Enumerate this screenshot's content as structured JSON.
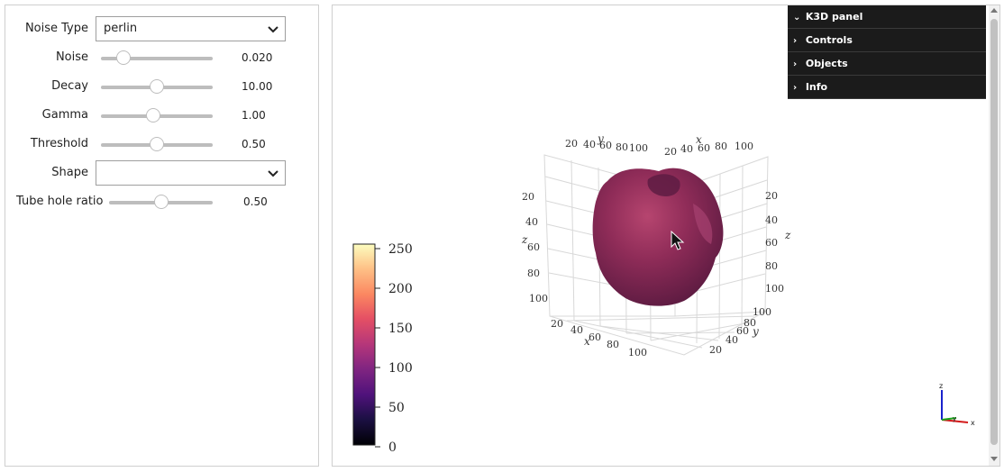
{
  "controls": {
    "noise_type": {
      "label": "Noise Type",
      "value": "perlin"
    },
    "noise": {
      "label": "Noise",
      "value": "0.020",
      "fraction": 0.2
    },
    "decay": {
      "label": "Decay",
      "value": "10.00",
      "fraction": 0.5
    },
    "gamma": {
      "label": "Gamma",
      "value": "1.00",
      "fraction": 0.47
    },
    "threshold": {
      "label": "Threshold",
      "value": "0.50",
      "fraction": 0.5
    },
    "shape": {
      "label": "Shape",
      "value": ""
    },
    "tube_hole_ratio": {
      "label": "Tube hole ratio",
      "value": "0.50",
      "fraction": 0.5
    }
  },
  "k3d_panel": {
    "title": "K3D panel",
    "items": [
      "Controls",
      "Objects",
      "Info"
    ]
  },
  "colorbar": {
    "ticks": [
      "250",
      "200",
      "150",
      "100",
      "50",
      "0"
    ],
    "colormap": "magma"
  },
  "axes": {
    "x_ticks": [
      "20",
      "40",
      "60",
      "80",
      "100"
    ],
    "y_ticks": [
      "20",
      "40",
      "60",
      "80",
      "100"
    ],
    "z_ticks": [
      "20",
      "40",
      "60",
      "80",
      "100"
    ],
    "x_name": "x",
    "y_name": "y",
    "z_name": "z"
  },
  "orientation_gizmo": {
    "x": "x",
    "y": "y",
    "z": "z"
  },
  "colors": {
    "surface": "#8e2a55",
    "panel_bg": "#1b1b1b",
    "slider_track": "#bdbdbd"
  }
}
